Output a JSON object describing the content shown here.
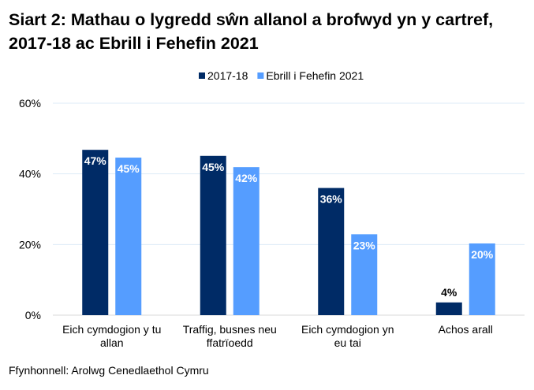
{
  "chart_data": {
    "type": "bar",
    "title": "Siart 2: Mathau o lygredd sŵn allanol a brofwyd yn y cartref, 2017-18 ac Ebrill i Fehefin 2021",
    "categories": [
      [
        "Eich cymdogion y tu",
        "allan"
      ],
      [
        "Traffig, busnes neu",
        "ffatrïoedd"
      ],
      [
        "Eich cymdogion yn",
        "eu tai"
      ],
      [
        "Achos arall"
      ]
    ],
    "series": [
      {
        "name": "2017-18",
        "color": "#002b66",
        "values": [
          46.8,
          45.1,
          36.0,
          3.6
        ],
        "labels": [
          "47%",
          "45%",
          "36%",
          "4%"
        ]
      },
      {
        "name": "Ebrill i Fehefin 2021",
        "color": "#559dff",
        "values": [
          44.6,
          41.9,
          22.9,
          20.3
        ],
        "labels": [
          "45%",
          "42%",
          "23%",
          "20%"
        ]
      }
    ],
    "yticks": [
      "0%",
      "20%",
      "40%",
      "60%"
    ],
    "ylim": [
      0,
      60
    ],
    "grid": true,
    "legend": "top"
  },
  "source": "Ffynhonnell: Arolwg Cenedlaethol Cymru"
}
